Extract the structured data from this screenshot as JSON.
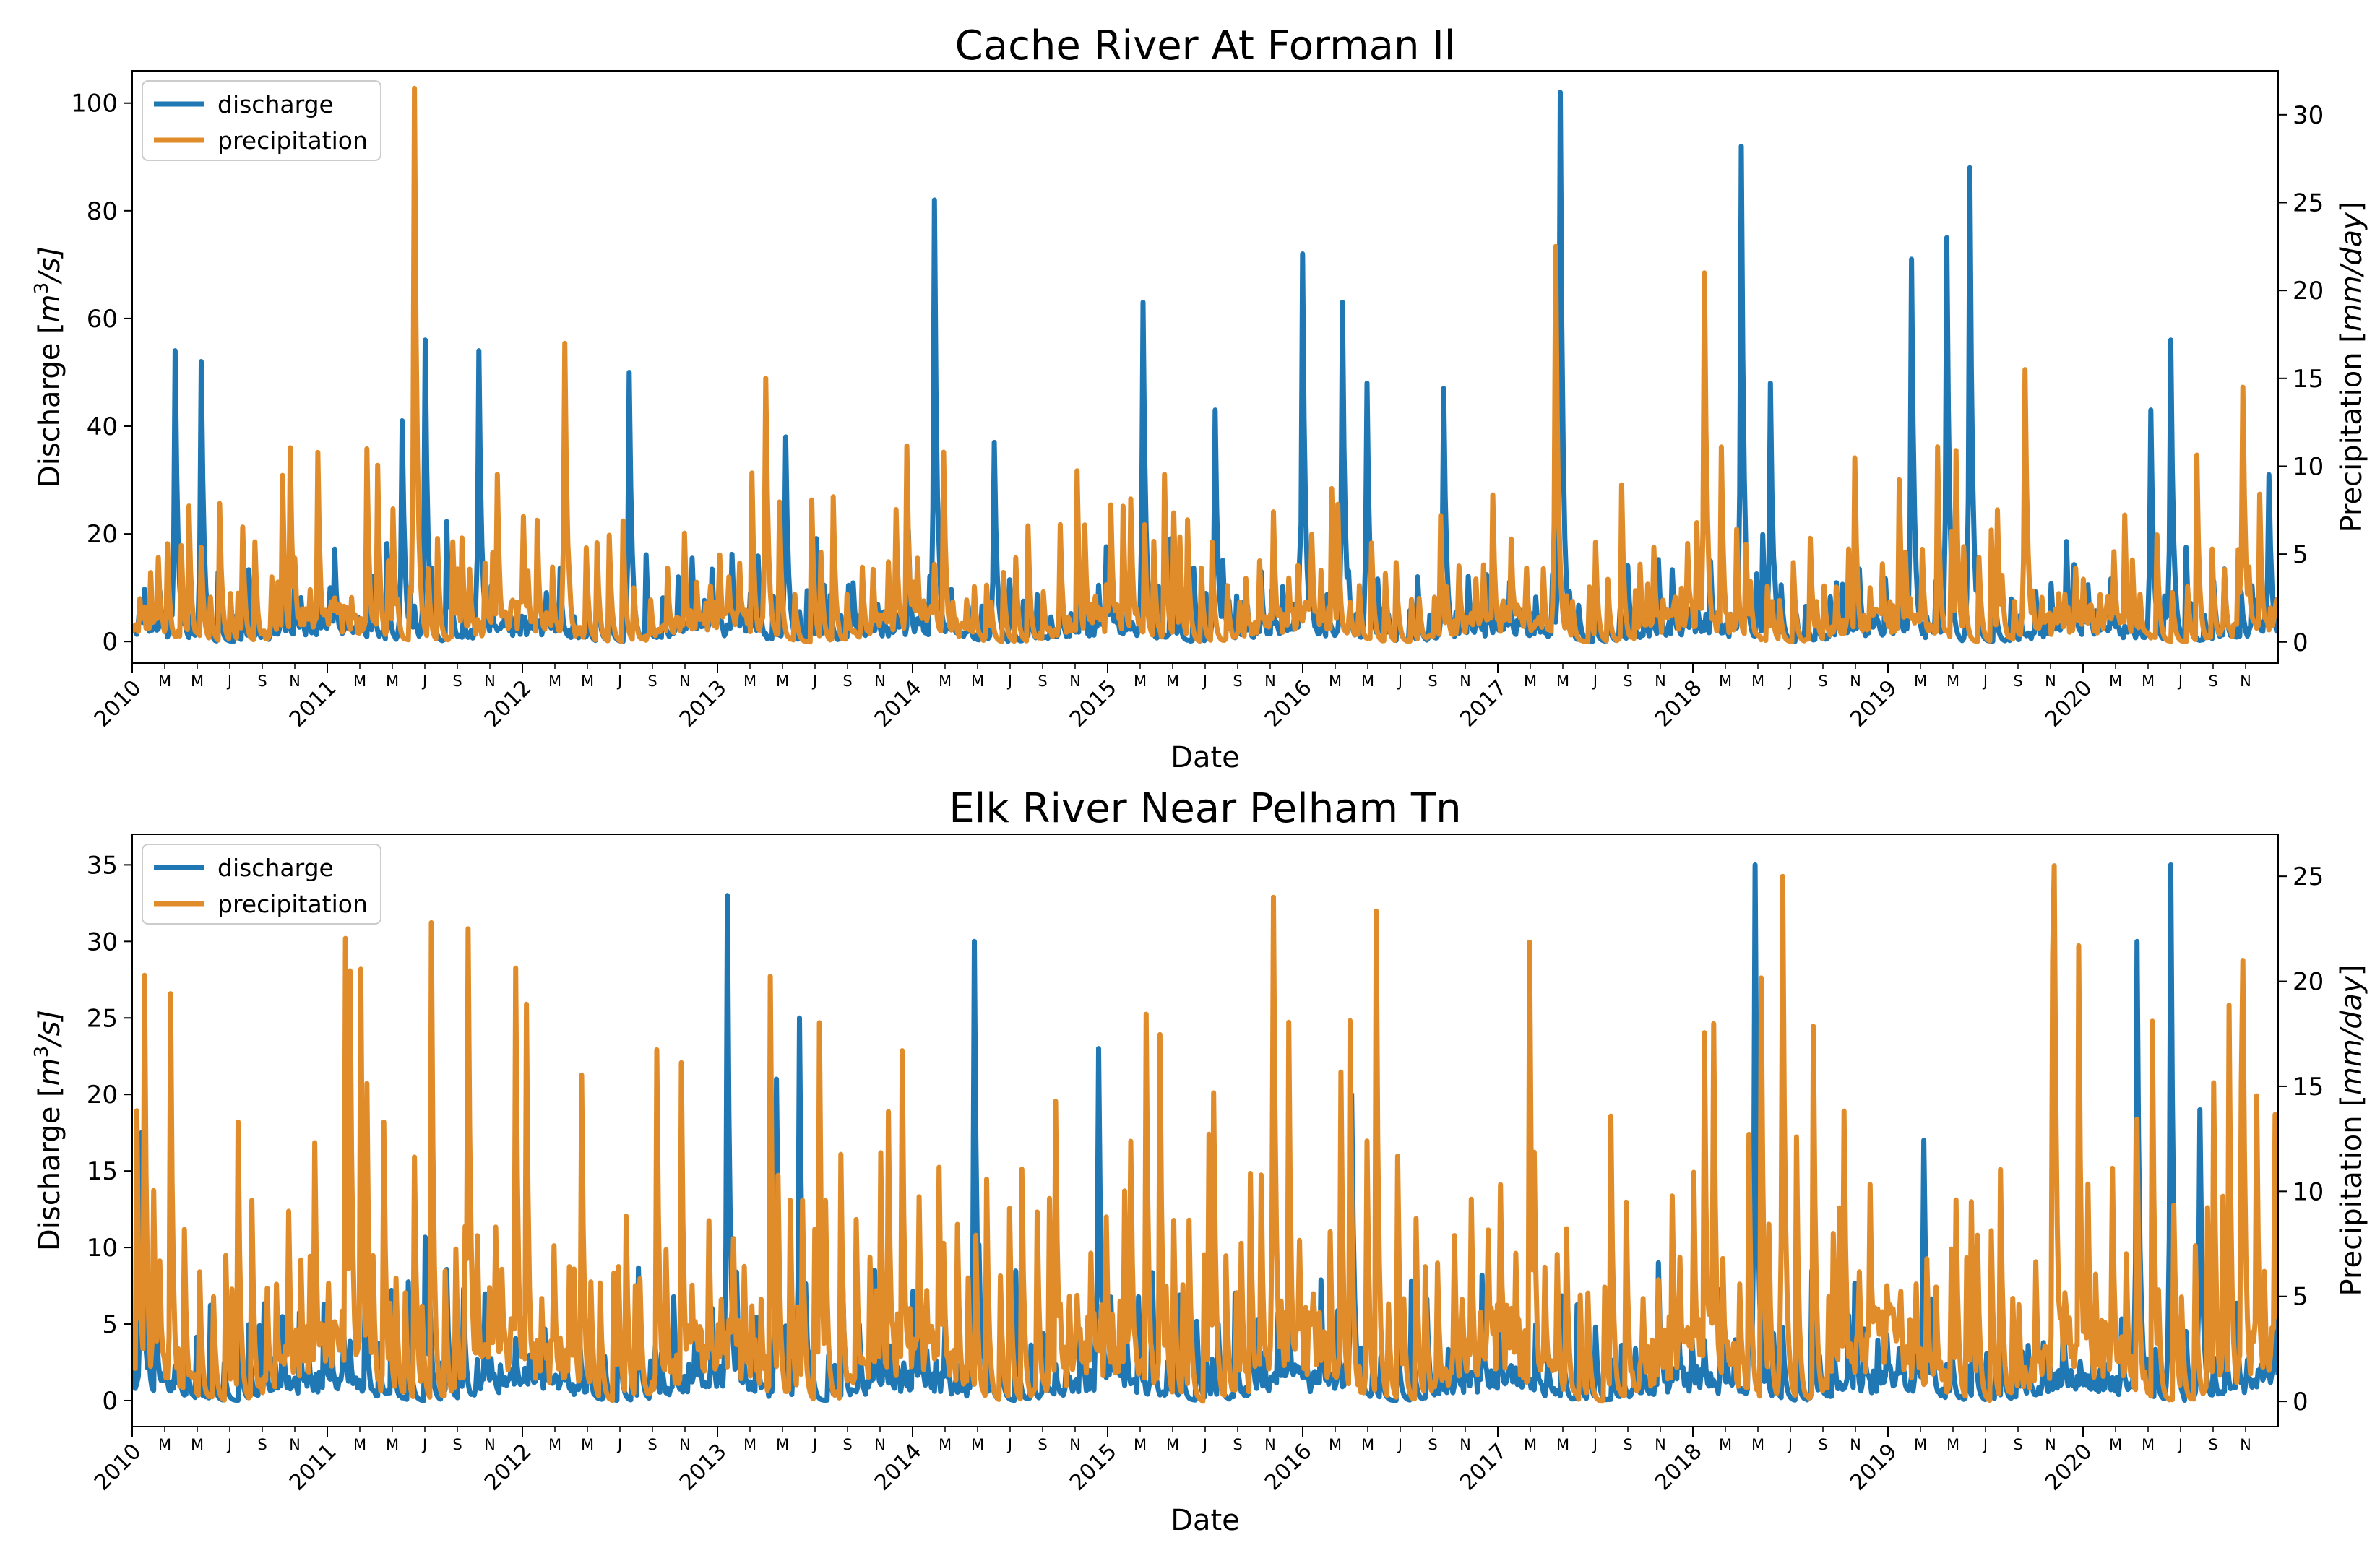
{
  "chart_data": [
    {
      "type": "line",
      "title": "Cache River At Forman Il",
      "xlabel": "Date",
      "ylabel": "Discharge [m³/s]",
      "ylabel_base": "Discharge [",
      "ylabel_unit": "m",
      "ylabel_exp": "3",
      "ylabel_rest": "/s]",
      "y2label": "Precipitation [mm/day]",
      "y2label_base": "Precipitation [",
      "y2label_unit": "mm/day",
      "y2label_close": "]",
      "ylim": [
        -4,
        106
      ],
      "y2lim": [
        -1.2,
        32.5
      ],
      "yticks": [
        0,
        20,
        40,
        60,
        80,
        100
      ],
      "y2ticks": [
        0,
        5,
        10,
        15,
        20,
        25,
        30
      ],
      "x_range": [
        "2010-01",
        "2020-12"
      ],
      "year_labels": [
        "2010",
        "2011",
        "2012",
        "2013",
        "2014",
        "2015",
        "2016",
        "2017",
        "2018",
        "2019",
        "2020"
      ],
      "month_labels": [
        "M",
        "M",
        "J",
        "S",
        "N"
      ],
      "legend": [
        "discharge",
        "precipitation"
      ],
      "legend_position": "upper-left",
      "series": [
        {
          "name": "discharge",
          "color": "#1f77b4",
          "base": 3,
          "peaks": [
            [
              0.22,
              54
            ],
            [
              0.35,
              52
            ],
            [
              1.38,
              41
            ],
            [
              1.5,
              56
            ],
            [
              1.78,
              54
            ],
            [
              2.55,
              50
            ],
            [
              3.35,
              38
            ],
            [
              4.11,
              82
            ],
            [
              4.42,
              37
            ],
            [
              5.18,
              63
            ],
            [
              5.55,
              43
            ],
            [
              6.0,
              72
            ],
            [
              6.2,
              63
            ],
            [
              6.33,
              48
            ],
            [
              6.72,
              47
            ],
            [
              7.32,
              102
            ],
            [
              8.25,
              92
            ],
            [
              8.4,
              48
            ],
            [
              9.12,
              71
            ],
            [
              9.3,
              75
            ],
            [
              9.42,
              88
            ],
            [
              10.35,
              43
            ],
            [
              10.45,
              56
            ],
            [
              10.95,
              31
            ]
          ]
        },
        {
          "name": "precipitation",
          "color": "#e08c2a",
          "base": 1.5,
          "max": 31.5,
          "peaks": [
            [
              1.45,
              31.5
            ],
            [
              2.22,
              17
            ],
            [
              3.25,
              15
            ],
            [
              7.3,
              22.5
            ],
            [
              8.06,
              21
            ],
            [
              9.7,
              15.5
            ],
            [
              10.82,
              14.5
            ]
          ]
        }
      ]
    },
    {
      "type": "line",
      "title": "Elk River Near Pelham Tn",
      "xlabel": "Date",
      "ylabel": "Discharge [m³/s]",
      "ylabel_base": "Discharge [",
      "ylabel_unit": "m",
      "ylabel_exp": "3",
      "ylabel_rest": "/s]",
      "y2label": "Precipitation [mm/day]",
      "y2label_base": "Precipitation [",
      "y2label_unit": "mm/day",
      "y2label_close": "]",
      "ylim": [
        -1.7,
        37
      ],
      "y2lim": [
        -1.2,
        27
      ],
      "yticks": [
        0,
        5,
        10,
        15,
        20,
        25,
        30,
        35
      ],
      "y2ticks": [
        0,
        5,
        10,
        15,
        20,
        25
      ],
      "x_range": [
        "2010-01",
        "2020-12"
      ],
      "year_labels": [
        "2010",
        "2011",
        "2012",
        "2013",
        "2014",
        "2015",
        "2016",
        "2017",
        "2018",
        "2019",
        "2020"
      ],
      "month_labels": [
        "M",
        "M",
        "J",
        "S",
        "N"
      ],
      "legend": [
        "discharge",
        "precipitation"
      ],
      "legend_position": "upper-left",
      "series": [
        {
          "name": "discharge",
          "color": "#1f77b4",
          "base": 1.5,
          "peaks": [
            [
              0.05,
              17.5
            ],
            [
              3.05,
              33
            ],
            [
              3.3,
              21
            ],
            [
              3.42,
              25
            ],
            [
              4.32,
              30
            ],
            [
              4.95,
              23
            ],
            [
              6.25,
              20
            ],
            [
              8.32,
              35
            ],
            [
              9.18,
              17
            ],
            [
              10.28,
              30
            ],
            [
              10.45,
              35
            ],
            [
              10.6,
              19
            ]
          ]
        },
        {
          "name": "precipitation",
          "color": "#e08c2a",
          "base": 3,
          "max": 25.5,
          "peaks": [
            [
              1.12,
              20.5
            ],
            [
              1.72,
              22.5
            ],
            [
              5.85,
              24
            ],
            [
              8.46,
              25
            ],
            [
              9.85,
              25.5
            ],
            [
              10.82,
              21
            ]
          ]
        }
      ]
    }
  ]
}
